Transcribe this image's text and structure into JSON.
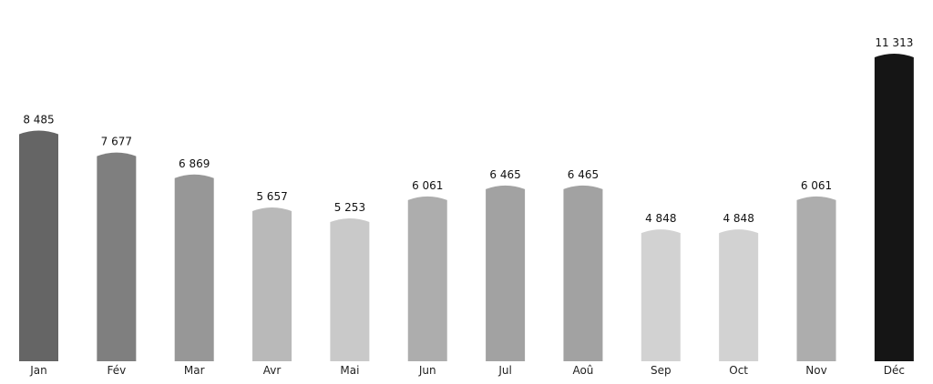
{
  "chart_data": {
    "type": "bar",
    "title": "",
    "xlabel": "",
    "ylabel": "",
    "ylim": [
      0,
      11313
    ],
    "grid": false,
    "legend": "none",
    "categories": [
      "Jan",
      "Fév",
      "Mar",
      "Avr",
      "Mai",
      "Jun",
      "Jul",
      "Aoû",
      "Sep",
      "Oct",
      "Nov",
      "Déc"
    ],
    "values": [
      8485,
      7677,
      6869,
      5657,
      5253,
      6061,
      6465,
      6465,
      4848,
      4848,
      6061,
      11313
    ],
    "value_labels": [
      "8 485",
      "7 677",
      "6 869",
      "5 657",
      "5 253",
      "6 061",
      "6 465",
      "6 465",
      "4 848",
      "4 848",
      "6 061",
      "11 313"
    ],
    "colors": [
      "#656565",
      "#7f7f7f",
      "#979797",
      "#b9b9b9",
      "#c9c9c9",
      "#adadad",
      "#a2a2a2",
      "#a2a2a2",
      "#d2d2d2",
      "#d2d2d2",
      "#adadad",
      "#151515"
    ]
  }
}
